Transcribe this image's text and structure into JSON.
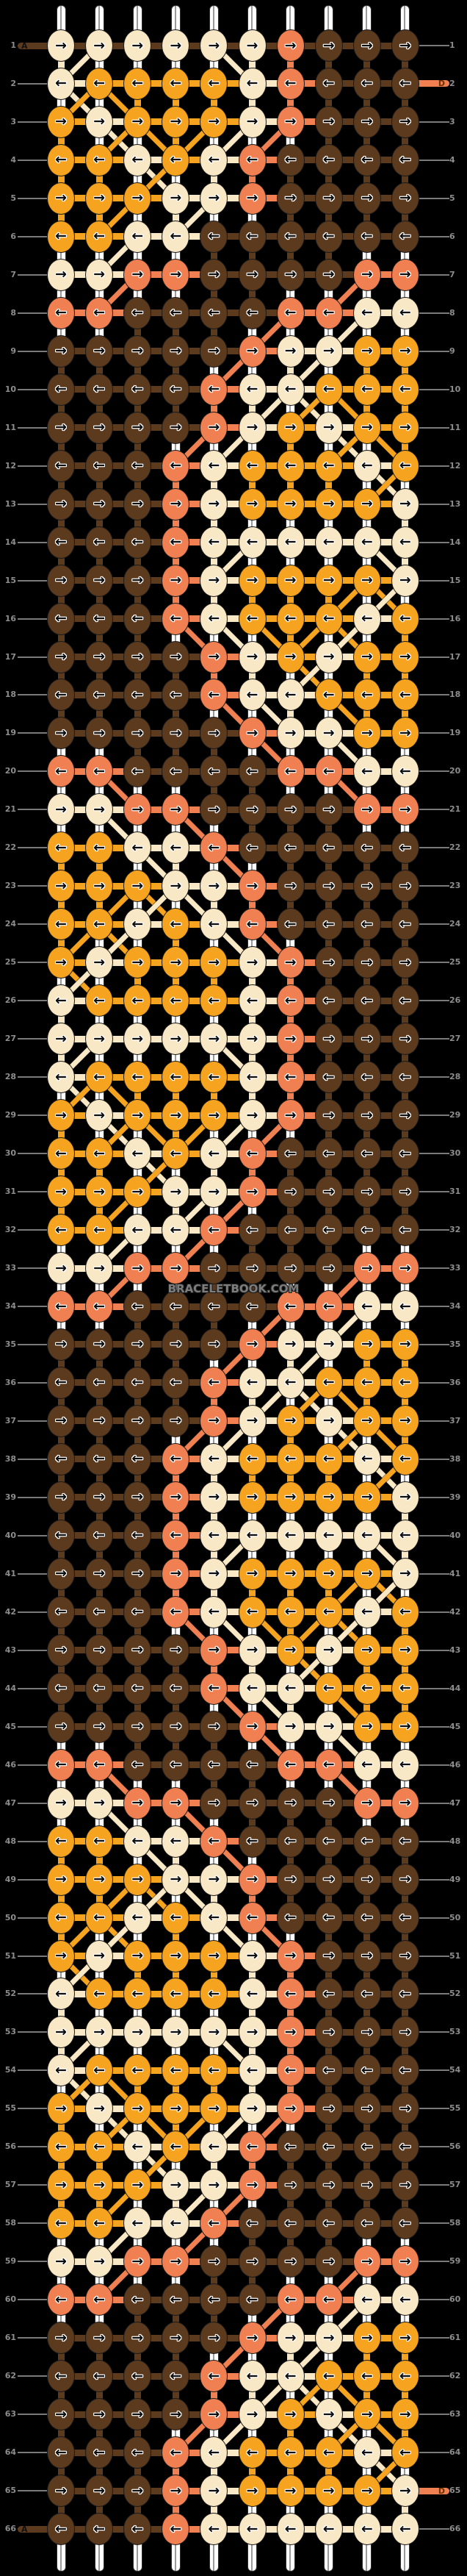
{
  "pattern": {
    "watermark": "BRACELETBOOK.COM",
    "columns": 10,
    "row_count": 66,
    "arrow_right": "→",
    "arrow_left": "←",
    "thread_colors": {
      "A": "#5C3A1E",
      "B": "#F9E8C5",
      "C": "#F6A41F",
      "D": "#F08052"
    },
    "colors": {
      "background": "#000000",
      "row_number_gray": "#8d8d8d",
      "guide_line_gray": "#7a7a7a",
      "base_string_white": "#ffffff",
      "watermark_gray": "#7d7d7d"
    },
    "thread_labels": [
      {
        "thread": "A",
        "row": 1,
        "side": "left"
      },
      {
        "thread": "D",
        "row": 2,
        "side": "right"
      },
      {
        "thread": "D",
        "row": 65,
        "side": "right"
      },
      {
        "thread": "A",
        "row": 66,
        "side": "left"
      }
    ],
    "rows": [
      {
        "n": 1,
        "dir": "→",
        "knots": "BBBBBBDAAA"
      },
      {
        "n": 2,
        "dir": "←",
        "knots": "BCCCCBDAAA"
      },
      {
        "n": 3,
        "dir": "→",
        "knots": "CBCCCBDAAA"
      },
      {
        "n": 4,
        "dir": "←",
        "knots": "CCBCBDAAAA"
      },
      {
        "n": 5,
        "dir": "→",
        "knots": "CCCBBDAAAA"
      },
      {
        "n": 6,
        "dir": "←",
        "knots": "CCBBAAAAAA"
      },
      {
        "n": 7,
        "dir": "→",
        "knots": "BBDDAAAADD"
      },
      {
        "n": 8,
        "dir": "←",
        "knots": "DDAAAADDBB"
      },
      {
        "n": 9,
        "dir": "→",
        "knots": "AAAAADBBCC"
      },
      {
        "n": 10,
        "dir": "←",
        "knots": "AAAADBBCCC"
      },
      {
        "n": 11,
        "dir": "→",
        "knots": "AAAADBCBCC"
      },
      {
        "n": 12,
        "dir": "←",
        "knots": "AAADBCCCBC"
      },
      {
        "n": 13,
        "dir": "→",
        "knots": "AAADBCCCCB"
      },
      {
        "n": 14,
        "dir": "←",
        "knots": "AAADBBBBBB"
      },
      {
        "n": 15,
        "dir": "→",
        "knots": "AAADBCCCCB"
      },
      {
        "n": 16,
        "dir": "←",
        "knots": "AAADBCCCBC"
      },
      {
        "n": 17,
        "dir": "→",
        "knots": "AAAADBCBCC"
      },
      {
        "n": 18,
        "dir": "←",
        "knots": "AAAADBBCCC"
      },
      {
        "n": 19,
        "dir": "→",
        "knots": "AAAAADBBCC"
      },
      {
        "n": 20,
        "dir": "←",
        "knots": "DDAAAADDBB"
      },
      {
        "n": 21,
        "dir": "→",
        "knots": "BBDDAAAADD"
      },
      {
        "n": 22,
        "dir": "←",
        "knots": "CCBBDAAAAA"
      },
      {
        "n": 23,
        "dir": "→",
        "knots": "CCCBBDAAAA"
      },
      {
        "n": 24,
        "dir": "←",
        "knots": "CCBCBDAAAA"
      },
      {
        "n": 25,
        "dir": "→",
        "knots": "CBCCCBDAAA"
      },
      {
        "n": 26,
        "dir": "←",
        "knots": "BCCCCBDAAA"
      },
      {
        "n": 27,
        "dir": "→",
        "knots": "BBBBBBDAAA"
      },
      {
        "n": 28,
        "dir": "←",
        "knots": "BCCCCBDAAA"
      },
      {
        "n": 29,
        "dir": "→",
        "knots": "CBCCCBDAAA"
      },
      {
        "n": 30,
        "dir": "←",
        "knots": "CCBCBDAAAA"
      },
      {
        "n": 31,
        "dir": "→",
        "knots": "CCCBBDAAAA"
      },
      {
        "n": 32,
        "dir": "←",
        "knots": "CCBBDAAAAA"
      },
      {
        "n": 33,
        "dir": "→",
        "knots": "BBDDAAAADD"
      },
      {
        "n": 34,
        "dir": "←",
        "knots": "DDAAAADDBB"
      },
      {
        "n": 35,
        "dir": "→",
        "knots": "AAAAADBBCC"
      },
      {
        "n": 36,
        "dir": "←",
        "knots": "AAAADBBCCC"
      },
      {
        "n": 37,
        "dir": "→",
        "knots": "AAAADBCBCC"
      },
      {
        "n": 38,
        "dir": "←",
        "knots": "AAADBCCCBC"
      },
      {
        "n": 39,
        "dir": "→",
        "knots": "AAADBCCCCB"
      },
      {
        "n": 40,
        "dir": "←",
        "knots": "AAADBBBBBB"
      },
      {
        "n": 41,
        "dir": "→",
        "knots": "AAADBCCCCB"
      },
      {
        "n": 42,
        "dir": "←",
        "knots": "AAADBCCCBC"
      },
      {
        "n": 43,
        "dir": "→",
        "knots": "AAAADBCBCC"
      },
      {
        "n": 44,
        "dir": "←",
        "knots": "AAAADBBCCC"
      },
      {
        "n": 45,
        "dir": "→",
        "knots": "AAAAADBBCC"
      },
      {
        "n": 46,
        "dir": "←",
        "knots": "DDAAAADDBB"
      },
      {
        "n": 47,
        "dir": "→",
        "knots": "BBDDAAAADD"
      },
      {
        "n": 48,
        "dir": "←",
        "knots": "CCBBDAAAAA"
      },
      {
        "n": 49,
        "dir": "→",
        "knots": "CCCBBDAAAA"
      },
      {
        "n": 50,
        "dir": "←",
        "knots": "CCBCBDAAAA"
      },
      {
        "n": 51,
        "dir": "→",
        "knots": "CBCCCBDAAA"
      },
      {
        "n": 52,
        "dir": "←",
        "knots": "BCCCCBDAAA"
      },
      {
        "n": 53,
        "dir": "→",
        "knots": "BBBBBBDAAA"
      },
      {
        "n": 54,
        "dir": "←",
        "knots": "BCCCCBDAAA"
      },
      {
        "n": 55,
        "dir": "→",
        "knots": "CBCCCBDAAA"
      },
      {
        "n": 56,
        "dir": "←",
        "knots": "CCBCBDAAAA"
      },
      {
        "n": 57,
        "dir": "→",
        "knots": "CCCBBDAAAA"
      },
      {
        "n": 58,
        "dir": "←",
        "knots": "CCBBDAAAAA"
      },
      {
        "n": 59,
        "dir": "→",
        "knots": "BBDDAAAADD"
      },
      {
        "n": 60,
        "dir": "←",
        "knots": "DDAAAADDBB"
      },
      {
        "n": 61,
        "dir": "→",
        "knots": "AAAAADBBCC"
      },
      {
        "n": 62,
        "dir": "←",
        "knots": "AAAADBBCCC"
      },
      {
        "n": 63,
        "dir": "→",
        "knots": "AAAADBCBCC"
      },
      {
        "n": 64,
        "dir": "←",
        "knots": "AAADBCCCBC"
      },
      {
        "n": 65,
        "dir": "→",
        "knots": "AAADBCCCCB"
      },
      {
        "n": 66,
        "dir": "←",
        "knots": "AAADBBBBBB"
      }
    ]
  }
}
